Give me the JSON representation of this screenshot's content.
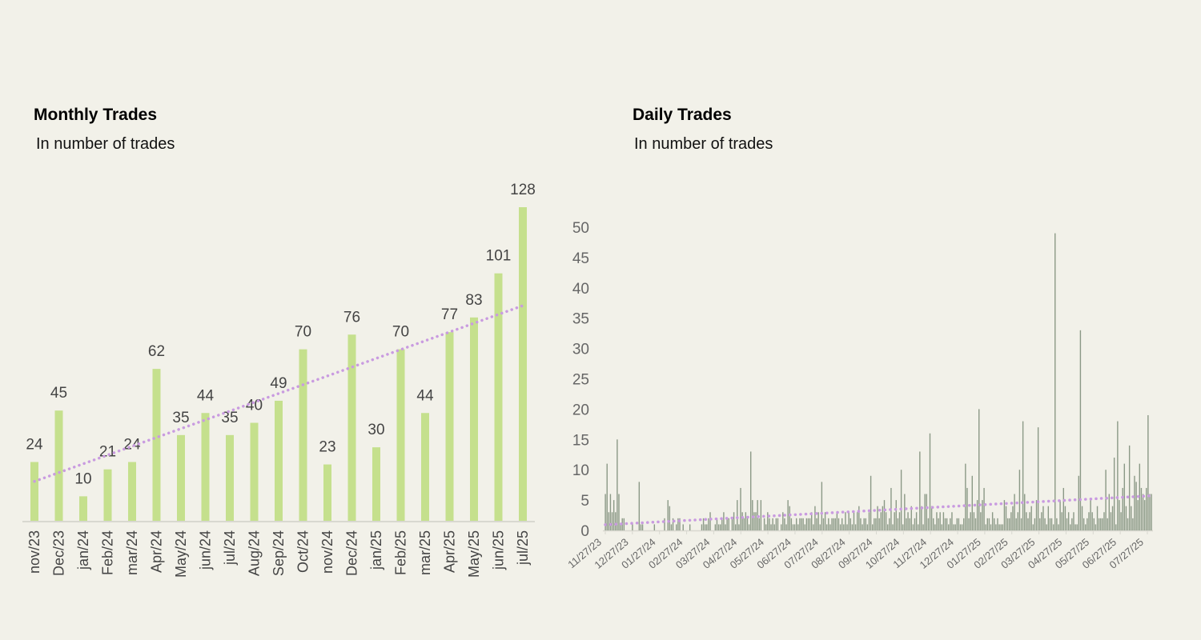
{
  "colors": {
    "background": "#f2f1e9",
    "monthly_bar": "#c5e08d",
    "daily_bar": "#8b9986",
    "trendline": "#c99be0",
    "axis": "#d8d8d0"
  },
  "chart_data": [
    {
      "type": "bar",
      "title": "Monthly Trades",
      "subtitle": "In number of trades",
      "categories": [
        "nov/23",
        "Dec/23",
        "jan/24",
        "Feb/24",
        "mar/24",
        "Apr/24",
        "May/24",
        "jun/24",
        "jul/24",
        "Aug/24",
        "Sep/24",
        "Oct/24",
        "nov/24",
        "Dec/24",
        "jan/25",
        "Feb/25",
        "mar/25",
        "Apr/25",
        "May/25",
        "jun/25",
        "jul/25"
      ],
      "values": [
        24,
        45,
        10,
        21,
        24,
        62,
        35,
        44,
        35,
        40,
        49,
        70,
        23,
        76,
        30,
        70,
        44,
        77,
        83,
        101,
        128
      ],
      "ylim": [
        0,
        128
      ],
      "trendline": "linear, dotted",
      "data_labels": true,
      "grid": false,
      "yaxis_visible": false
    },
    {
      "type": "bar",
      "title": "Daily Trades",
      "subtitle": "In number of trades",
      "ylim": [
        0,
        50
      ],
      "yticks": [
        0,
        5,
        10,
        15,
        20,
        25,
        30,
        35,
        40,
        45,
        50
      ],
      "xtick_labels": [
        "11/27/23",
        "12/27/23",
        "01/27/24",
        "02/27/24",
        "03/27/24",
        "04/27/24",
        "05/27/24",
        "06/27/24",
        "07/27/24",
        "08/27/24",
        "09/27/24",
        "10/27/24",
        "11/27/24",
        "12/27/24",
        "01/27/25",
        "02/27/25",
        "03/27/25",
        "04/27/25",
        "05/27/25",
        "06/27/25",
        "07/27/25"
      ],
      "trendline": "linear, dotted",
      "grid": false,
      "values": [
        6,
        11,
        3,
        6,
        3,
        5,
        3,
        15,
        6,
        1,
        2,
        2,
        0,
        0,
        0,
        0,
        1,
        0,
        0,
        0,
        8,
        1,
        1,
        0,
        0,
        0,
        0,
        0,
        0,
        1,
        0,
        0,
        0,
        0,
        0,
        2,
        0,
        5,
        4,
        1,
        2,
        0,
        1,
        2,
        2,
        0,
        1,
        0,
        0,
        0,
        1,
        0,
        0,
        0,
        0,
        0,
        0,
        1,
        2,
        1,
        1,
        2,
        3,
        0,
        0,
        1,
        2,
        1,
        1,
        2,
        3,
        1,
        2,
        2,
        0,
        2,
        3,
        1,
        5,
        1,
        7,
        3,
        2,
        3,
        2,
        1,
        13,
        5,
        3,
        3,
        5,
        2,
        5,
        0,
        2,
        1,
        3,
        2,
        1,
        2,
        1,
        2,
        2,
        0,
        1,
        3,
        2,
        1,
        5,
        4,
        2,
        1,
        1,
        2,
        1,
        2,
        2,
        2,
        1,
        2,
        2,
        2,
        3,
        1,
        4,
        2,
        3,
        1,
        8,
        2,
        3,
        1,
        2,
        1,
        2,
        2,
        2,
        3,
        2,
        1,
        2,
        1,
        3,
        1,
        3,
        2,
        1,
        3,
        1,
        3,
        4,
        2,
        1,
        2,
        2,
        1,
        3,
        9,
        1,
        2,
        2,
        4,
        2,
        3,
        4,
        5,
        3,
        1,
        2,
        7,
        1,
        3,
        5,
        2,
        3,
        10,
        1,
        6,
        2,
        3,
        2,
        4,
        1,
        2,
        3,
        1,
        13,
        4,
        1,
        6,
        6,
        2,
        16,
        4,
        2,
        1,
        3,
        2,
        3,
        1,
        3,
        2,
        2,
        1,
        2,
        3,
        1,
        1,
        2,
        2,
        1,
        1,
        2,
        11,
        7,
        2,
        3,
        9,
        3,
        2,
        5,
        20,
        3,
        5,
        7,
        1,
        2,
        2,
        1,
        3,
        2,
        1,
        2,
        1,
        1,
        1,
        5,
        4,
        2,
        2,
        3,
        4,
        6,
        2,
        3,
        10,
        2,
        18,
        6,
        3,
        2,
        3,
        4,
        1,
        2,
        5,
        17,
        2,
        3,
        4,
        2,
        1,
        4,
        2,
        2,
        1,
        49,
        2,
        1,
        5,
        3,
        7,
        4,
        2,
        3,
        1,
        2,
        3,
        1,
        1,
        9,
        33,
        4,
        2,
        1,
        2,
        3,
        5,
        3,
        2,
        1,
        4,
        2,
        2,
        2,
        3,
        10,
        2,
        6,
        3,
        4,
        12,
        1,
        18,
        5,
        3,
        7,
        11,
        4,
        2,
        14,
        4,
        2,
        9,
        8,
        5,
        11,
        7,
        6,
        5,
        7,
        19,
        6,
        6
      ]
    }
  ]
}
